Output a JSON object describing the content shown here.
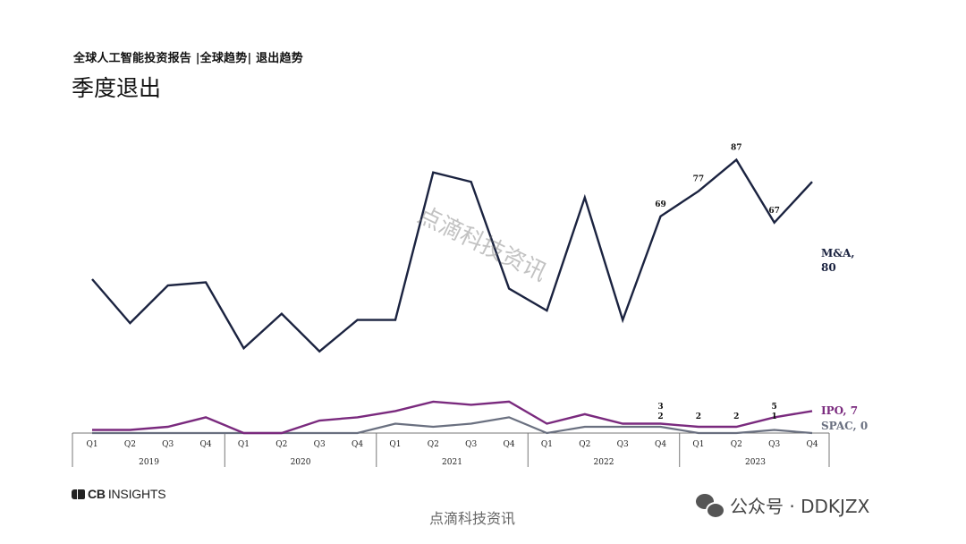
{
  "header": {
    "subtitle": "全球人工智能投资报告 |全球趋势| 退出趋势",
    "title": "季度退出"
  },
  "watermark": "点滴科技资讯",
  "footer": {
    "logo_left": "CB",
    "logo_right": "INSIGHTS",
    "source_mark": "点滴科技资讯",
    "wechat_label": "公众号 · DDKJZX"
  },
  "colors": {
    "ma": "#1b2340",
    "ipo": "#7a2a7e",
    "spac": "#6a7080",
    "axis": "#777777"
  },
  "chart_data": {
    "type": "line",
    "categories": [
      "Q1",
      "Q2",
      "Q3",
      "Q4",
      "Q1",
      "Q2",
      "Q3",
      "Q4",
      "Q1",
      "Q2",
      "Q3",
      "Q4",
      "Q1",
      "Q2",
      "Q3",
      "Q4",
      "Q1",
      "Q2",
      "Q3",
      "Q4"
    ],
    "years": [
      "2019",
      "2020",
      "2021",
      "2022",
      "2023"
    ],
    "ylim": [
      0,
      140
    ],
    "series": [
      {
        "name": "M&A",
        "end_label": "M&A,",
        "end_value_label": "80",
        "values": [
          49,
          35,
          47,
          48,
          27,
          38,
          26,
          36,
          36,
          83,
          80,
          46,
          39,
          75,
          36,
          69,
          77,
          87,
          67,
          80
        ],
        "point_labels": [
          null,
          null,
          null,
          null,
          null,
          null,
          null,
          null,
          null,
          null,
          null,
          null,
          null,
          null,
          null,
          "69",
          "77",
          "87",
          "67",
          null
        ]
      },
      {
        "name": "IPO",
        "end_label": "IPO, 7",
        "values": [
          1,
          1,
          2,
          5,
          0,
          0,
          4,
          5,
          7,
          10,
          9,
          10,
          3,
          6,
          3,
          3,
          2,
          2,
          5,
          7
        ],
        "point_labels": [
          null,
          null,
          null,
          null,
          null,
          null,
          null,
          null,
          null,
          null,
          null,
          null,
          null,
          null,
          null,
          "3",
          "2",
          "2",
          "5",
          null
        ]
      },
      {
        "name": "SPAC",
        "end_label": "SPAC, 0",
        "values": [
          0,
          0,
          0,
          0,
          0,
          0,
          0,
          0,
          3,
          2,
          3,
          5,
          0,
          2,
          2,
          2,
          0,
          0,
          1,
          0
        ],
        "point_labels": [
          null,
          null,
          null,
          null,
          null,
          null,
          null,
          null,
          null,
          null,
          null,
          null,
          null,
          null,
          null,
          "2",
          null,
          null,
          "1",
          null
        ]
      }
    ]
  }
}
